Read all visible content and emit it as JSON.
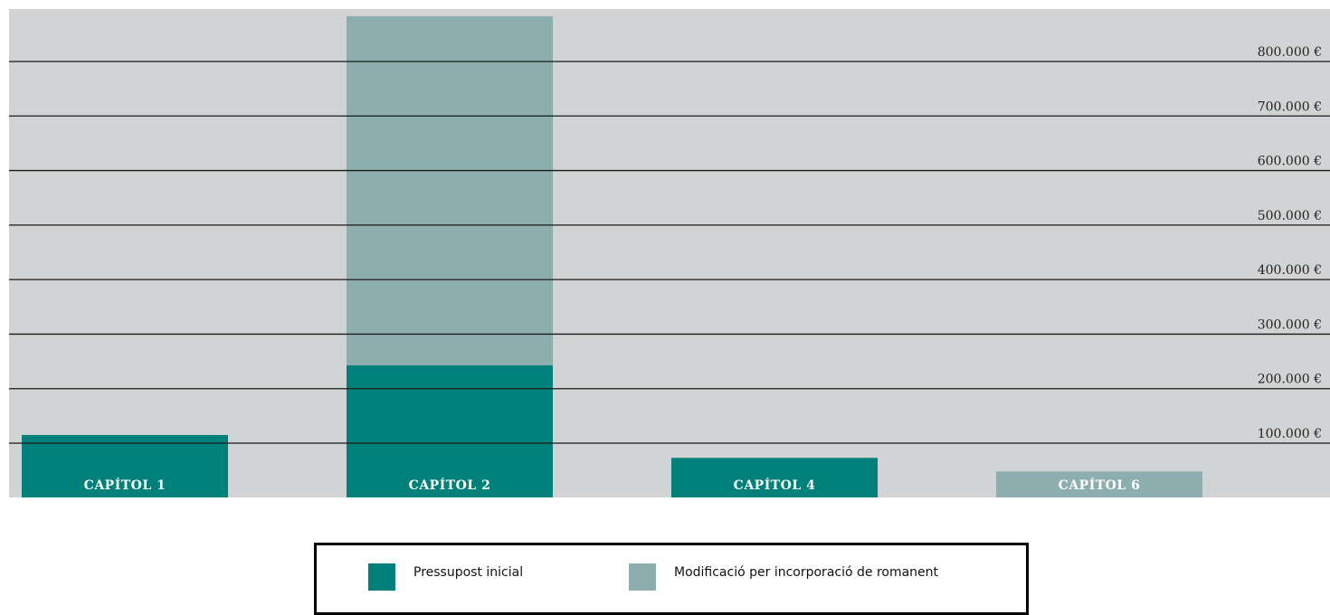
{
  "chart_data": {
    "type": "bar",
    "stacked": true,
    "categories": [
      "CAPÍTOL 1",
      "CAPÍTOL 2",
      "CAPÍTOL 4",
      "CAPÍTOL 6"
    ],
    "series": [
      {
        "name": "Pressupost inicial",
        "color": "#00807b",
        "values": [
          115000,
          243000,
          73000,
          0
        ]
      },
      {
        "name": "Modificació per incorporació de romanent",
        "color": "#8daeae",
        "values": [
          0,
          640000,
          0,
          48000
        ]
      }
    ],
    "y_ticks": [
      100000,
      200000,
      300000,
      400000,
      500000,
      600000,
      700000,
      800000
    ],
    "y_tick_labels": [
      "100.000 €",
      "200.000 €",
      "300.000 €",
      "400.000 €",
      "500.000 €",
      "600.000 €",
      "700.000 €",
      "800.000 €"
    ],
    "ylim": [
      0,
      900000
    ],
    "title": "",
    "xlabel": "",
    "ylabel": "",
    "grid": true,
    "legend_position": "bottom",
    "background_color": "#d1d3d4"
  }
}
